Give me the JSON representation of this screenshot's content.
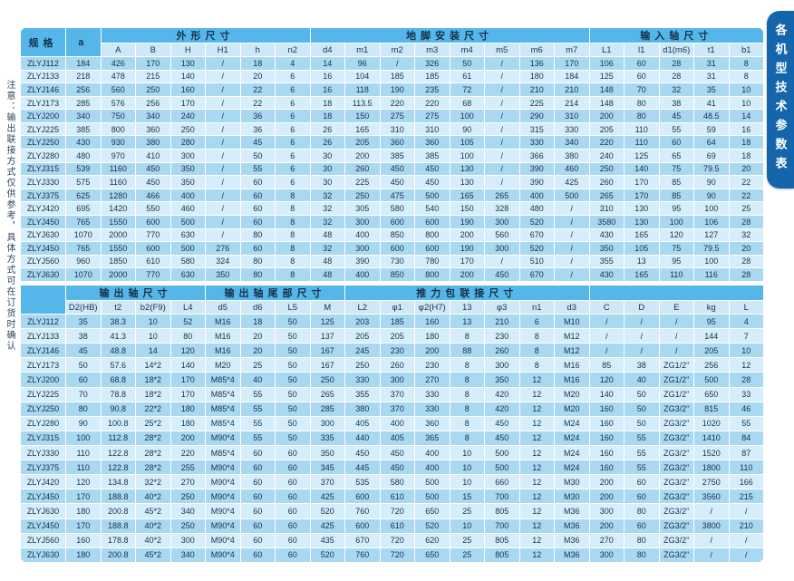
{
  "page": {
    "side_note": "注意：输出联接方式仅供参考，具体方式可在订货时确认",
    "tab_label": "各机型技术参数表"
  },
  "colors": {
    "group_header_blue": "#55b7e9",
    "subheader_blue": "#cde9f7",
    "row_odd_blue": "#a9d8f1",
    "row_even_blue": "#d6eefb",
    "tab_blue": "#1565ad",
    "text_dark": "#16314d",
    "grid_white": "#ffffff"
  },
  "tables": {
    "top": {
      "lead": [
        "规格",
        "a"
      ],
      "groups": [
        {
          "label": "外形尺寸",
          "cols": [
            "A",
            "B",
            "H",
            "H1",
            "h",
            "n2"
          ]
        },
        {
          "label": "地脚安装尺寸",
          "cols": [
            "d4",
            "m1",
            "m2",
            "m3",
            "m4",
            "m5",
            "m6",
            "m7"
          ]
        },
        {
          "label": "输入轴尺寸",
          "cols": [
            "L1",
            "l1",
            "d1(m6)",
            "t1",
            "b1"
          ]
        }
      ],
      "rows": [
        [
          "ZLYJ112",
          "184",
          "426",
          "170",
          "130",
          "/",
          "18",
          "4",
          "14",
          "96",
          "/",
          "326",
          "50",
          "/",
          "136",
          "170",
          "106",
          "60",
          "28",
          "31",
          "8"
        ],
        [
          "ZLYJ133",
          "218",
          "478",
          "215",
          "140",
          "/",
          "20",
          "6",
          "16",
          "104",
          "185",
          "185",
          "61",
          "/",
          "180",
          "184",
          "125",
          "60",
          "28",
          "31",
          "8"
        ],
        [
          "ZLYJ146",
          "256",
          "560",
          "250",
          "160",
          "/",
          "22",
          "6",
          "16",
          "118",
          "190",
          "235",
          "72",
          "/",
          "210",
          "210",
          "148",
          "70",
          "32",
          "35",
          "10"
        ],
        [
          "ZLYJ173",
          "285",
          "576",
          "256",
          "170",
          "/",
          "22",
          "6",
          "18",
          "113.5",
          "220",
          "220",
          "68",
          "/",
          "225",
          "214",
          "148",
          "80",
          "38",
          "41",
          "10"
        ],
        [
          "ZLYJ200",
          "340",
          "750",
          "340",
          "240",
          "/",
          "36",
          "6",
          "18",
          "150",
          "275",
          "275",
          "100",
          "/",
          "290",
          "310",
          "200",
          "80",
          "45",
          "48.5",
          "14"
        ],
        [
          "ZLYJ225",
          "385",
          "800",
          "360",
          "250",
          "/",
          "36",
          "6",
          "26",
          "165",
          "310",
          "310",
          "90",
          "/",
          "315",
          "330",
          "205",
          "110",
          "55",
          "59",
          "16"
        ],
        [
          "ZLYJ250",
          "430",
          "930",
          "380",
          "280",
          "/",
          "45",
          "6",
          "26",
          "205",
          "360",
          "360",
          "105",
          "/",
          "330",
          "340",
          "220",
          "110",
          "60",
          "64",
          "18"
        ],
        [
          "ZLYJ280",
          "480",
          "970",
          "410",
          "300",
          "/",
          "50",
          "6",
          "30",
          "200",
          "385",
          "385",
          "100",
          "/",
          "366",
          "380",
          "240",
          "125",
          "65",
          "69",
          "18"
        ],
        [
          "ZLYJ315",
          "539",
          "1160",
          "450",
          "350",
          "/",
          "55",
          "6",
          "30",
          "260",
          "450",
          "450",
          "130",
          "/",
          "390",
          "460",
          "250",
          "140",
          "75",
          "79.5",
          "20"
        ],
        [
          "ZLYJ330",
          "575",
          "1160",
          "450",
          "350",
          "/",
          "60",
          "6",
          "30",
          "225",
          "450",
          "450",
          "130",
          "/",
          "390",
          "425",
          "260",
          "170",
          "85",
          "90",
          "22"
        ],
        [
          "ZLYJ375",
          "625",
          "1280",
          "466",
          "400",
          "/",
          "60",
          "8",
          "32",
          "250",
          "475",
          "500",
          "165",
          "265",
          "400",
          "500",
          "265",
          "170",
          "85",
          "90",
          "22"
        ],
        [
          "ZLYJ420",
          "695",
          "1420",
          "550",
          "460",
          "/",
          "60",
          "8",
          "32",
          "305",
          "580",
          "540",
          "150",
          "328",
          "480",
          "/",
          "310",
          "130",
          "95",
          "100",
          "25"
        ],
        [
          "ZLYJ450",
          "765",
          "1550",
          "600",
          "500",
          "/",
          "60",
          "8",
          "32",
          "300",
          "600",
          "600",
          "190",
          "300",
          "520",
          "/",
          "3580",
          "130",
          "100",
          "106",
          "28"
        ],
        [
          "ZLYJ630",
          "1070",
          "2000",
          "770",
          "630",
          "/",
          "80",
          "8",
          "48",
          "400",
          "850",
          "800",
          "200",
          "560",
          "670",
          "/",
          "430",
          "165",
          "120",
          "127",
          "32"
        ],
        [
          "ZLYJ450",
          "765",
          "1550",
          "600",
          "500",
          "276",
          "60",
          "8",
          "32",
          "300",
          "600",
          "600",
          "190",
          "300",
          "520",
          "/",
          "350",
          "105",
          "75",
          "79.5",
          "20"
        ],
        [
          "ZLYJ560",
          "960",
          "1850",
          "610",
          "580",
          "324",
          "80",
          "8",
          "48",
          "390",
          "730",
          "780",
          "170",
          "/",
          "510",
          "/",
          "355",
          "13",
          "95",
          "100",
          "28"
        ],
        [
          "ZLYJ630",
          "1070",
          "2000",
          "770",
          "630",
          "350",
          "80",
          "8",
          "48",
          "400",
          "850",
          "800",
          "200",
          "450",
          "670",
          "/",
          "430",
          "165",
          "110",
          "116",
          "28"
        ]
      ]
    },
    "bottom": {
      "lead": [
        ""
      ],
      "groups": [
        {
          "label": "输出轴尺寸",
          "cols": [
            "D2(HB)",
            "t2",
            "b2(F9)",
            "L4"
          ]
        },
        {
          "label": "输出轴尾部尺寸",
          "cols": [
            "d5",
            "d6",
            "L5",
            "M"
          ]
        },
        {
          "label": "推力包联接尺寸",
          "cols": [
            "L2",
            "φ1",
            "φ2(H7)",
            "13",
            "φ3",
            "n1",
            "d3"
          ]
        },
        {
          "label": "",
          "cols": [
            "C",
            "D",
            "E",
            "kg",
            "L"
          ]
        }
      ],
      "rows": [
        [
          "ZLYJ112",
          "35",
          "38.3",
          "10",
          "52",
          "M16",
          "18",
          "50",
          "125",
          "203",
          "185",
          "160",
          "13",
          "210",
          "6",
          "M10",
          "/",
          "/",
          "/",
          "95",
          "4"
        ],
        [
          "ZLYJ133",
          "38",
          "41.3",
          "10",
          "80",
          "M16",
          "20",
          "50",
          "137",
          "205",
          "205",
          "180",
          "8",
          "230",
          "8",
          "M12",
          "/",
          "/",
          "/",
          "144",
          "7"
        ],
        [
          "ZLYJ146",
          "45",
          "48.8",
          "14",
          "120",
          "M16",
          "20",
          "50",
          "167",
          "245",
          "230",
          "200",
          "88",
          "260",
          "8",
          "M12",
          "/",
          "/",
          "/",
          "205",
          "10"
        ],
        [
          "ZLYJ173",
          "50",
          "57.6",
          "14*2",
          "140",
          "M20",
          "25",
          "50",
          "167",
          "250",
          "260",
          "230",
          "8",
          "300",
          "8",
          "M16",
          "85",
          "38",
          "ZG1/2\"",
          "256",
          "12"
        ],
        [
          "ZLYJ200",
          "60",
          "68.8",
          "18*2",
          "170",
          "M85*4",
          "40",
          "50",
          "250",
          "330",
          "300",
          "270",
          "8",
          "350",
          "12",
          "M16",
          "120",
          "40",
          "ZG1/2\"",
          "500",
          "28"
        ],
        [
          "ZLYJ225",
          "70",
          "78.8",
          "18*2",
          "170",
          "M85*4",
          "55",
          "50",
          "265",
          "355",
          "370",
          "330",
          "8",
          "420",
          "12",
          "M20",
          "140",
          "50",
          "ZG1/2\"",
          "650",
          "33"
        ],
        [
          "ZLYJ250",
          "80",
          "90.8",
          "22*2",
          "180",
          "M85*4",
          "55",
          "50",
          "285",
          "380",
          "370",
          "330",
          "8",
          "420",
          "12",
          "M20",
          "160",
          "50",
          "ZG3/2\"",
          "815",
          "46"
        ],
        [
          "ZLYJ280",
          "90",
          "100.8",
          "25*2",
          "180",
          "M85*4",
          "55",
          "50",
          "300",
          "405",
          "400",
          "360",
          "8",
          "450",
          "12",
          "M24",
          "160",
          "50",
          "ZG3/2\"",
          "1020",
          "55"
        ],
        [
          "ZLYJ315",
          "100",
          "112.8",
          "28*2",
          "200",
          "M90*4",
          "55",
          "50",
          "335",
          "440",
          "405",
          "365",
          "8",
          "450",
          "12",
          "M24",
          "160",
          "55",
          "ZG3/2\"",
          "1410",
          "84"
        ],
        [
          "ZLYJ330",
          "110",
          "122.8",
          "28*2",
          "220",
          "M85*4",
          "60",
          "60",
          "350",
          "450",
          "450",
          "400",
          "10",
          "500",
          "12",
          "M24",
          "160",
          "55",
          "ZG3/2\"",
          "1520",
          "87"
        ],
        [
          "ZLYJ375",
          "110",
          "122.8",
          "28*2",
          "255",
          "M90*4",
          "60",
          "60",
          "345",
          "445",
          "450",
          "400",
          "10",
          "500",
          "12",
          "M24",
          "160",
          "55",
          "ZG3/2\"",
          "1800",
          "110"
        ],
        [
          "ZLYJ420",
          "120",
          "134.8",
          "32*2",
          "270",
          "M90*4",
          "60",
          "60",
          "370",
          "535",
          "580",
          "500",
          "10",
          "660",
          "12",
          "M30",
          "200",
          "60",
          "ZG3/2\"",
          "2750",
          "166"
        ],
        [
          "ZLYJ450",
          "170",
          "188.8",
          "40*2",
          "250",
          "M90*4",
          "60",
          "60",
          "425",
          "600",
          "610",
          "500",
          "15",
          "700",
          "12",
          "M30",
          "200",
          "60",
          "ZG3/2\"",
          "3560",
          "215"
        ],
        [
          "ZLYJ630",
          "180",
          "200.8",
          "45*2",
          "340",
          "M90*4",
          "60",
          "60",
          "520",
          "760",
          "720",
          "650",
          "25",
          "805",
          "12",
          "M36",
          "300",
          "80",
          "ZG3/2\"",
          "/",
          "/"
        ],
        [
          "ZLYJ450",
          "170",
          "188.8",
          "40*2",
          "250",
          "M90*4",
          "60",
          "60",
          "425",
          "600",
          "610",
          "520",
          "10",
          "700",
          "12",
          "M36",
          "200",
          "60",
          "ZG3/2\"",
          "3800",
          "210"
        ],
        [
          "ZLYJ560",
          "160",
          "178.8",
          "40*2",
          "300",
          "M90*4",
          "60",
          "60",
          "435",
          "670",
          "720",
          "620",
          "25",
          "805",
          "12",
          "M36",
          "270",
          "80",
          "ZG3/2\"",
          "/",
          "/"
        ],
        [
          "ZLYJ630",
          "180",
          "200.8",
          "45*2",
          "340",
          "M90*4",
          "60",
          "60",
          "520",
          "760",
          "720",
          "650",
          "25",
          "805",
          "12",
          "M36",
          "300",
          "80",
          "ZG3/2\"",
          "/",
          "/"
        ]
      ]
    }
  }
}
